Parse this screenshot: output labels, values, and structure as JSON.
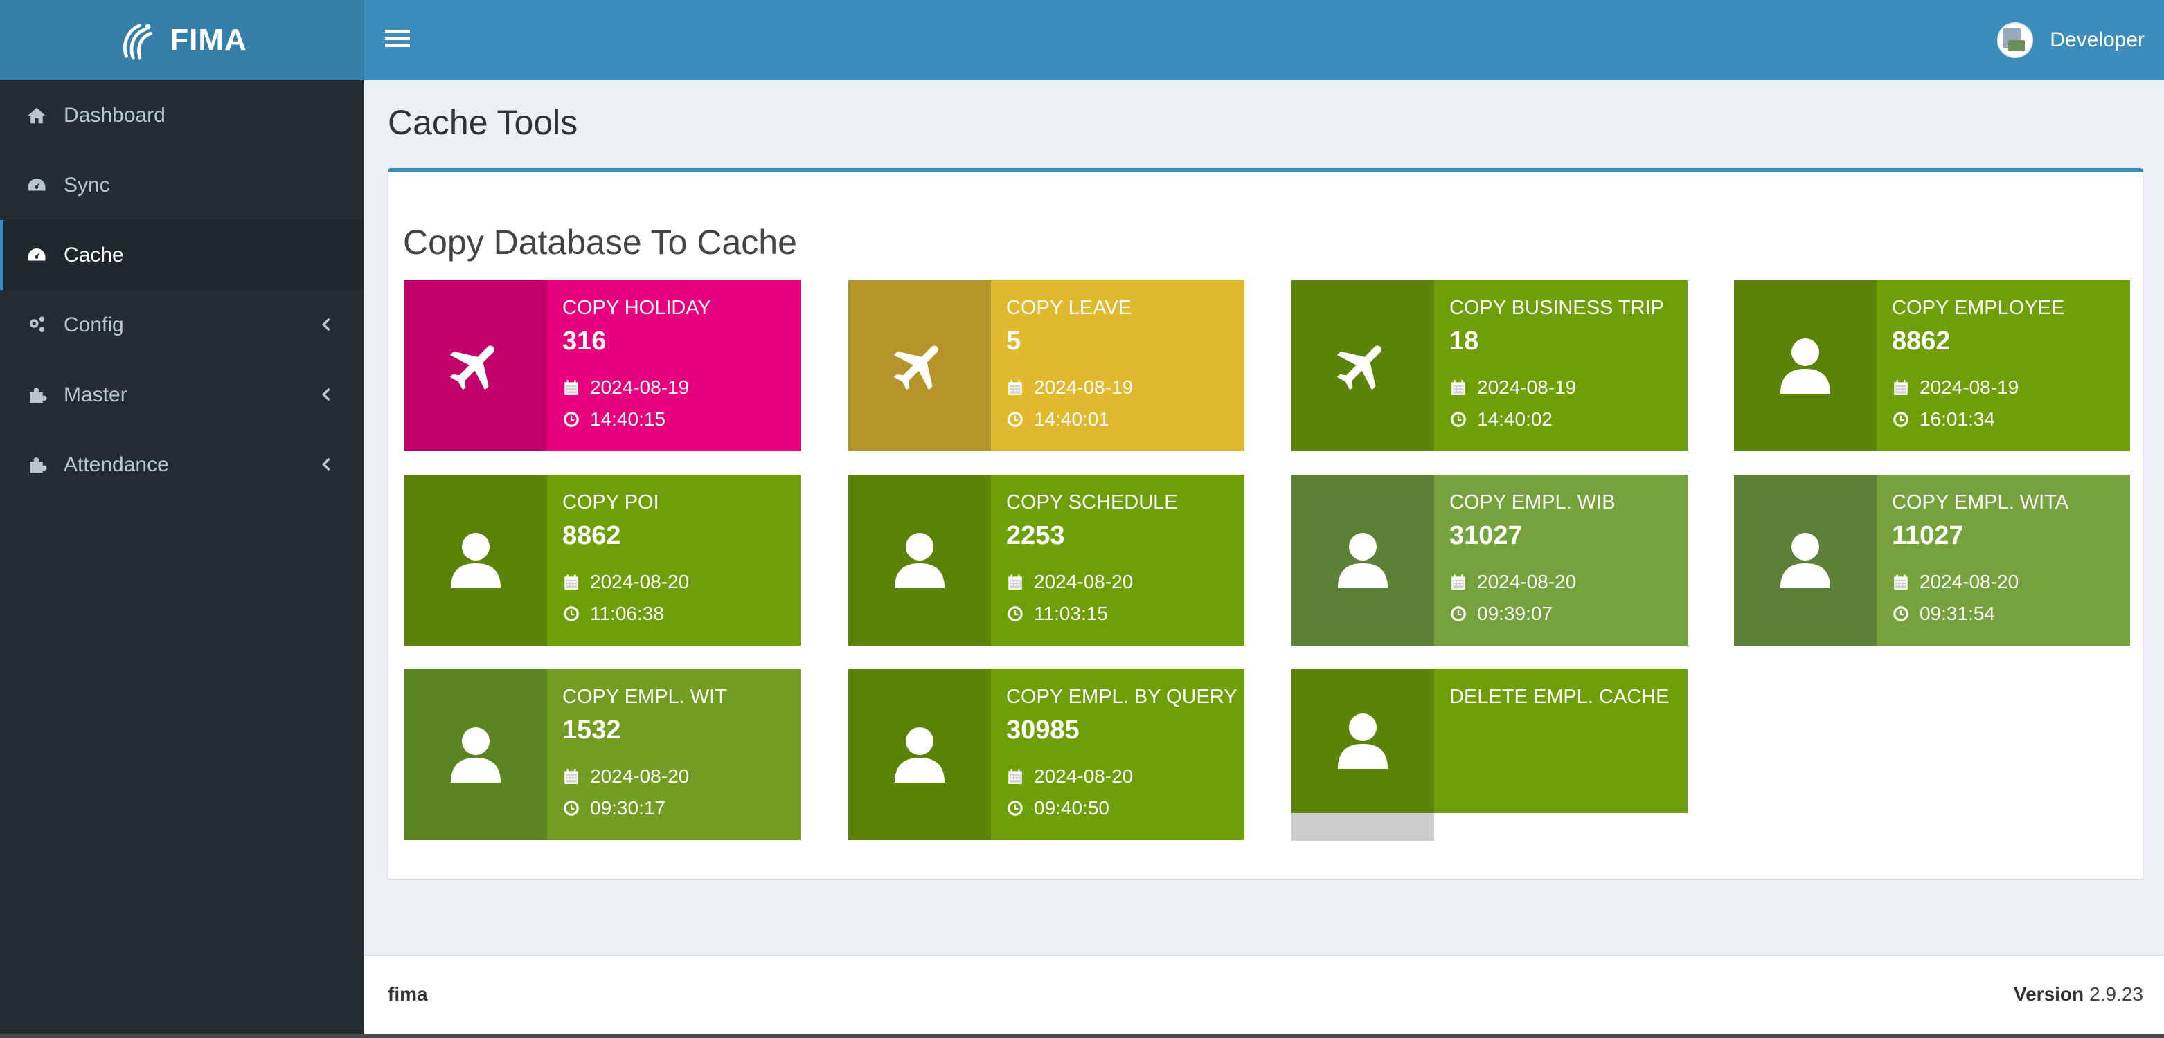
{
  "app": {
    "title": "FIMA"
  },
  "topbar": {
    "user_name": "Developer"
  },
  "sidebar": {
    "items": [
      {
        "label": "Dashboard",
        "icon": "home-icon"
      },
      {
        "label": "Sync",
        "icon": "dashboard-gauge-icon"
      },
      {
        "label": "Cache",
        "icon": "dashboard-gauge-icon",
        "active": true
      },
      {
        "label": "Config",
        "icon": "cogs-icon",
        "expandable": true
      },
      {
        "label": "Master",
        "icon": "puzzle-icon",
        "expandable": true
      },
      {
        "label": "Attendance",
        "icon": "puzzle-icon",
        "expandable": true
      }
    ]
  },
  "page": {
    "title": "Cache Tools"
  },
  "panel": {
    "title": "Copy Database To Cache"
  },
  "tiles": [
    {
      "label": "COPY HOLIDAY",
      "count": "316",
      "date": "2024-08-19",
      "time": "14:40:15",
      "icon": "plane-icon",
      "color": "#e6007e",
      "icon_bg": "#c1006a"
    },
    {
      "label": "COPY LEAVE",
      "count": "5",
      "date": "2024-08-19",
      "time": "14:40:01",
      "icon": "plane-icon",
      "color": "#e0b92e",
      "icon_bg": "#b3952a"
    },
    {
      "label": "COPY BUSINESS TRIP",
      "count": "18",
      "date": "2024-08-19",
      "time": "14:40:02",
      "icon": "plane-icon",
      "color": "#6f9f08",
      "icon_bg": "#5a8307"
    },
    {
      "label": "COPY EMPLOYEE",
      "count": "8862",
      "date": "2024-08-19",
      "time": "16:01:34",
      "icon": "user-icon",
      "color": "#6f9f08",
      "icon_bg": "#5a8307"
    },
    {
      "label": "COPY POI",
      "count": "8862",
      "date": "2024-08-20",
      "time": "11:06:38",
      "icon": "user-icon",
      "color": "#6f9f08",
      "icon_bg": "#5a8307"
    },
    {
      "label": "COPY SCHEDULE",
      "count": "2253",
      "date": "2024-08-20",
      "time": "11:03:15",
      "icon": "user-icon",
      "color": "#6f9f08",
      "icon_bg": "#5a8307"
    },
    {
      "label": "COPY EMPL. WIB",
      "count": "31027",
      "date": "2024-08-20",
      "time": "09:39:07",
      "icon": "user-icon",
      "color": "#76a23e",
      "icon_bg": "#5b8036"
    },
    {
      "label": "COPY EMPL. WITA",
      "count": "11027",
      "date": "2024-08-20",
      "time": "09:31:54",
      "icon": "user-icon",
      "color": "#76a23e",
      "icon_bg": "#5b8036"
    },
    {
      "label": "COPY EMPL. WIT",
      "count": "1532",
      "date": "2024-08-20",
      "time": "09:30:17",
      "icon": "user-icon",
      "color": "#729c22",
      "icon_bg": "#5b8520"
    },
    {
      "label": "COPY EMPL. BY QUERY",
      "count": "30985",
      "date": "2024-08-20",
      "time": "09:40:50",
      "icon": "user-icon",
      "color": "#6f9f08",
      "icon_bg": "#5a8307"
    },
    {
      "label": "DELETE EMPL. CACHE",
      "count": "",
      "date": "",
      "time": "",
      "icon": "user-icon",
      "color": "#6f9f08",
      "icon_bg": "#5a8307"
    }
  ],
  "footer": {
    "brand": "fima",
    "version_label": "Version",
    "version": "2.9.23"
  }
}
